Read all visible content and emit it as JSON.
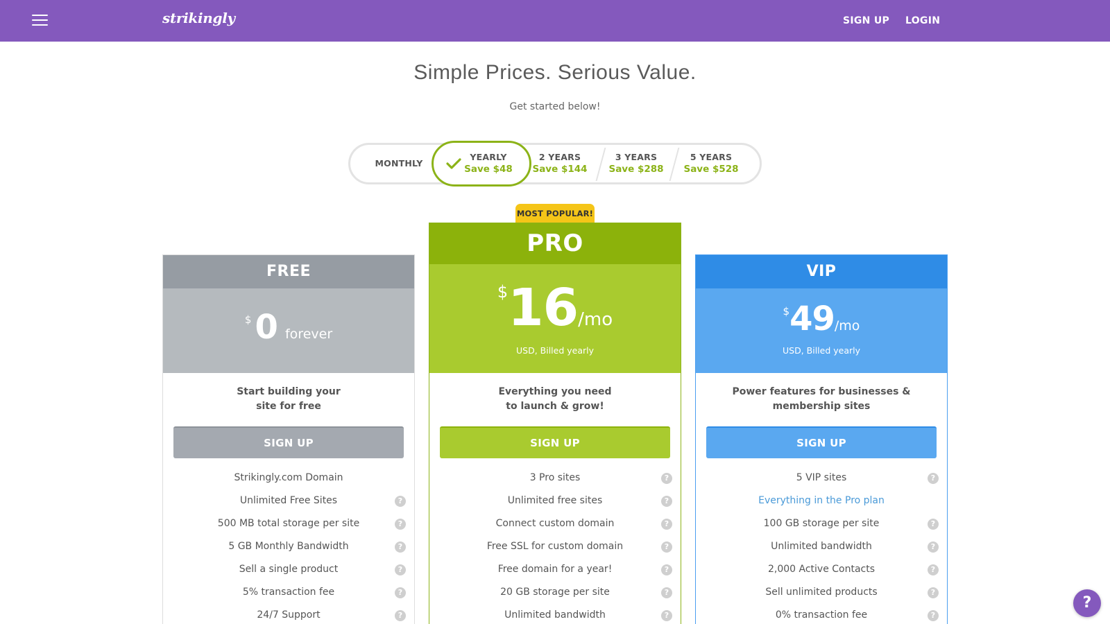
{
  "nav": {
    "logo": "strikingly",
    "signup_label": "SIGN UP",
    "login_label": "LOGIN",
    "menu_icon": "hamburger-icon"
  },
  "hero": {
    "title": "Simple Prices. Serious Value.",
    "subtitle": "Get started below!"
  },
  "billing_toggle": {
    "selected": "YEARLY",
    "options": [
      {
        "label": "MONTHLY",
        "save": ""
      },
      {
        "label": "YEARLY",
        "save": "Save $48"
      },
      {
        "label": "2 YEARS",
        "save": "Save $144"
      },
      {
        "label": "3 YEARS",
        "save": "Save $288"
      },
      {
        "label": "5 YEARS",
        "save": "Save $528"
      }
    ]
  },
  "badge": "MOST POPULAR!",
  "plans": [
    {
      "name": "FREE",
      "currency": "$",
      "amount": "0",
      "per": "forever",
      "billed": "",
      "description_line1": "Start building your",
      "description_line2": "site for free",
      "button": "SIGN UP",
      "features": [
        {
          "text": "Strikingly.com Domain",
          "help": false
        },
        {
          "text": "Unlimited Free Sites",
          "help": true
        },
        {
          "text": "500 MB total storage per site",
          "help": true
        },
        {
          "text": "5 GB Monthly Bandwidth",
          "help": true
        },
        {
          "text": "Sell a single product",
          "help": true
        },
        {
          "text": "5% transaction fee",
          "help": true
        },
        {
          "text": "24/7 Support",
          "help": true
        }
      ]
    },
    {
      "name": "PRO",
      "currency": "$",
      "amount": "16",
      "per": "/mo",
      "billed": "USD, Billed yearly",
      "description_line1": "Everything you need",
      "description_line2": "to launch & grow!",
      "button": "SIGN UP",
      "features": [
        {
          "text": "3 Pro sites",
          "help": true
        },
        {
          "text": "Unlimited free sites",
          "help": true
        },
        {
          "text": "Connect custom domain",
          "help": true
        },
        {
          "text": "Free SSL for custom domain",
          "help": true
        },
        {
          "text": "Free domain for a year!",
          "help": true
        },
        {
          "text": "20 GB storage per site",
          "help": true
        },
        {
          "text": "Unlimited bandwidth",
          "help": true
        }
      ]
    },
    {
      "name": "VIP",
      "currency": "$",
      "amount": "49",
      "per": "/mo",
      "billed": "USD, Billed yearly",
      "description_line1": "Power features for businesses &",
      "description_line2": "membership sites",
      "button": "SIGN UP",
      "features": [
        {
          "text": "5 VIP sites",
          "help": true
        },
        {
          "text": "Everything in the Pro plan",
          "help": false,
          "highlight": true
        },
        {
          "text": "100 GB storage per site",
          "help": true
        },
        {
          "text": "Unlimited bandwidth",
          "help": true
        },
        {
          "text": "2,000 Active Contacts",
          "help": true
        },
        {
          "text": "Sell unlimited products",
          "help": true
        },
        {
          "text": "0% transaction fee",
          "help": true
        }
      ]
    }
  ],
  "help_button": "?",
  "colors": {
    "nav": "#8459bd",
    "free": "#969ca3",
    "pro": "#8cb20b",
    "vip": "#2f8ce6",
    "badge": "#f5c518",
    "save_text": "#8cb318"
  }
}
